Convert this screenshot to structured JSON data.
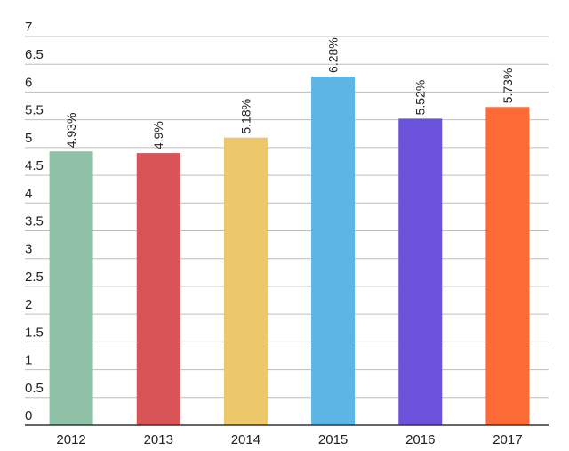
{
  "chart_data": {
    "type": "bar",
    "categories": [
      "2012",
      "2013",
      "2014",
      "2015",
      "2016",
      "2017"
    ],
    "values": [
      4.93,
      4.9,
      5.18,
      6.28,
      5.52,
      5.73
    ],
    "data_labels": [
      "4.93%",
      "4.9%",
      "5.18%",
      "6.28%",
      "5.52%",
      "5.73%"
    ],
    "colors": [
      "#8fc1a7",
      "#d95457",
      "#ecc86a",
      "#5db5e5",
      "#6b52db",
      "#fe6a36"
    ],
    "yticks": [
      "0",
      "0.5",
      "1",
      "1.5",
      "2",
      "2.5",
      "3",
      "3.5",
      "4",
      "4.5",
      "5",
      "5.5",
      "6",
      "6.5",
      "7"
    ],
    "ylim": [
      0,
      7
    ],
    "grid": true,
    "legend": "none"
  }
}
